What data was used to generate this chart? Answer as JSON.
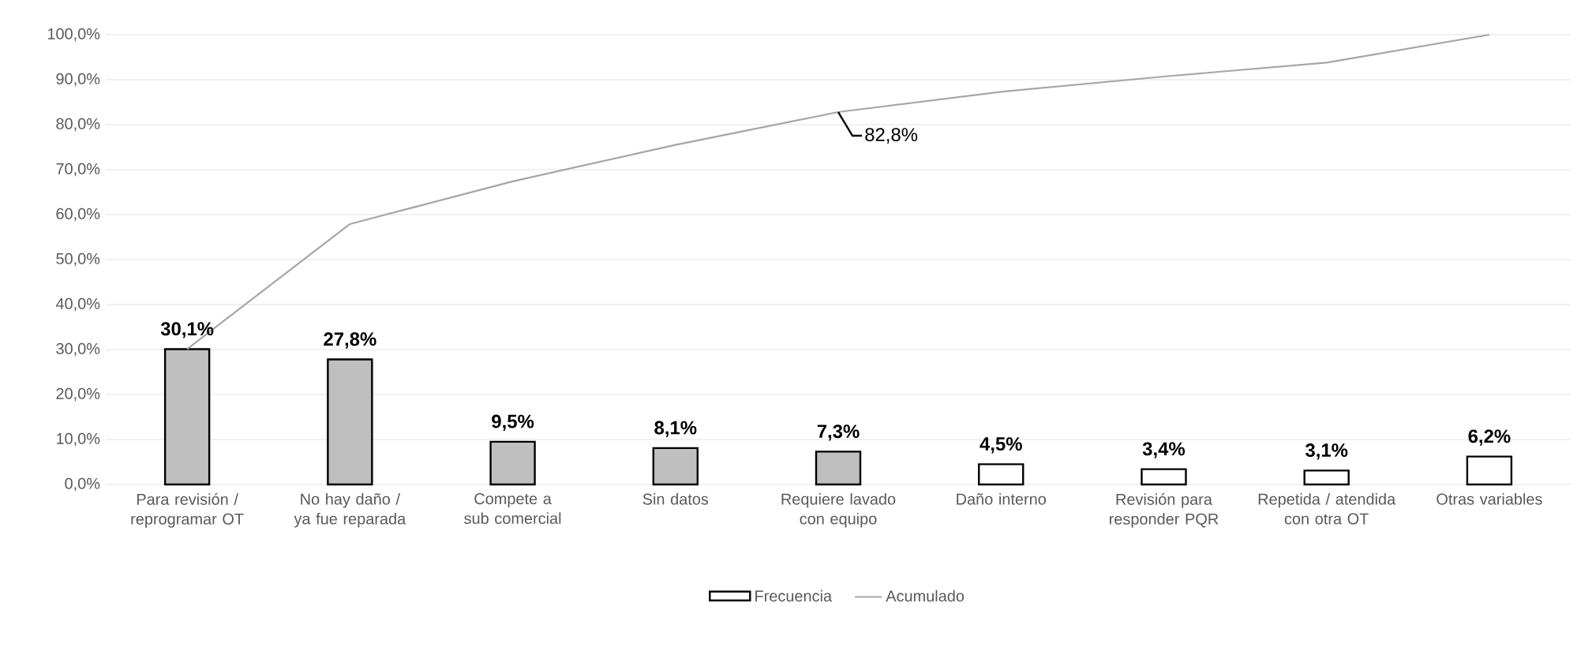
{
  "chart_data": {
    "type": "bar",
    "categories": [
      "Para revisión / reprogramar OT",
      "No hay daño / ya fue reparada",
      "Compete a sub comercial",
      "Sin datos",
      "Requiere lavado con equipo",
      "Daño interno",
      "Revisión para responder PQR",
      "Repetida / atendida con otra OT",
      "Otras variables"
    ],
    "series": [
      {
        "name": "Frecuencia",
        "colors": [
          "#bfbfbf",
          "#bfbfbf",
          "#bfbfbf",
          "#bfbfbf",
          "#bfbfbf",
          "#ffffff",
          "#ffffff",
          "#ffffff",
          "#ffffff"
        ],
        "values": [
          30.1,
          27.8,
          9.5,
          8.1,
          7.3,
          4.5,
          3.4,
          3.1,
          6.2
        ],
        "value_labels": [
          "30,1%",
          "27,8%",
          "9,5%",
          "8,1%",
          "7,3%",
          "4,5%",
          "3,4%",
          "3,1%",
          "6,2%"
        ]
      },
      {
        "name": "Acumulado",
        "type": "line",
        "color": "#a6a6a6",
        "values": [
          30.1,
          57.9,
          67.4,
          75.5,
          82.8,
          87.3,
          90.7,
          93.8,
          100
        ]
      }
    ],
    "ylim": [
      0,
      100
    ],
    "yticks": [
      {
        "value": 0,
        "label": "0,0%"
      },
      {
        "value": 10,
        "label": "10,0%"
      },
      {
        "value": 20,
        "label": "20,0%"
      },
      {
        "value": 30,
        "label": "30,0%"
      },
      {
        "value": 40,
        "label": "40,0%"
      },
      {
        "value": 50,
        "label": "50,0%"
      },
      {
        "value": 60,
        "label": "60,0%"
      },
      {
        "value": 70,
        "label": "70,0%"
      },
      {
        "value": 80,
        "label": "80,0%"
      },
      {
        "value": 90,
        "label": "90,0%"
      },
      {
        "value": 100,
        "label": "100,0%"
      }
    ],
    "grid": "y",
    "legend": "bottom",
    "annotations": [
      {
        "text": "82,8%",
        "x": "Requiere lavado con equipo",
        "y": 82.8
      }
    ]
  }
}
